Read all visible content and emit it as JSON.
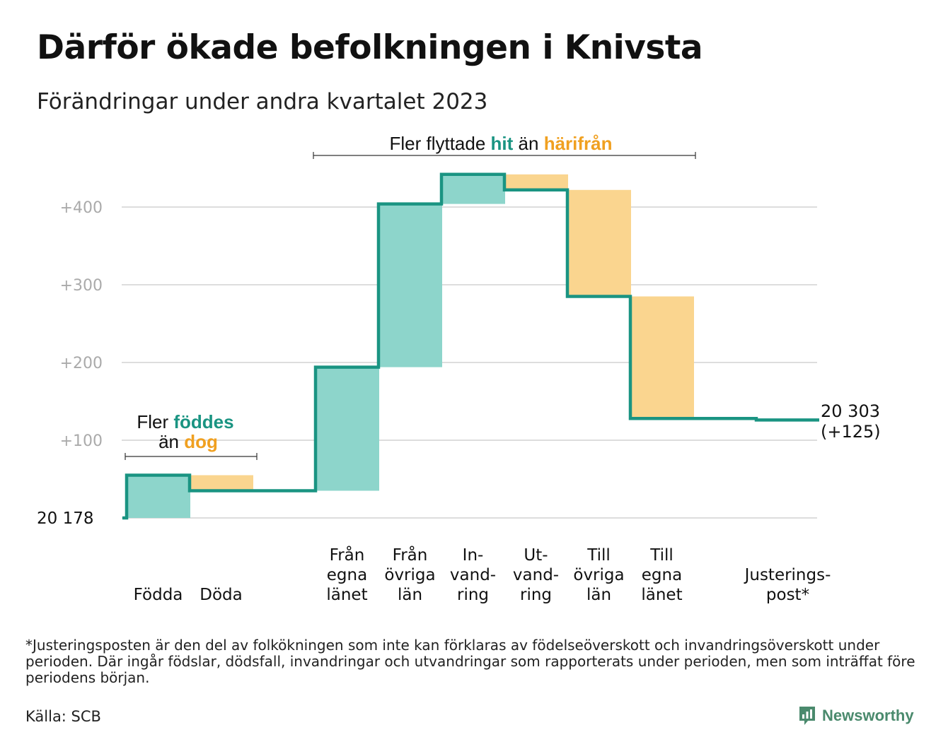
{
  "title": "Därför ökade befolkningen i Knivsta",
  "subtitle": "Förändringar under andra kvartalet 2023",
  "footnote": "*Justeringsposten är den del av folkökningen som inte kan förklaras av födelseöverskott och invandringsöverskott under perioden. Där ingår födslar, dödsfall, invandringar och utvandringar som rapporterats under perioden, men som inträffat före periodens början.",
  "source": "Källa: SCB",
  "brand": "Newsworthy",
  "colors": {
    "teal": "#1a9482",
    "teal_fill": "#8dd5cb",
    "orange_fill": "#fad58f",
    "orange_text": "#f0a020",
    "grid": "#dddddd",
    "tick": "#aaaaaa"
  },
  "annotations": {
    "birth_death": {
      "line1_pre": "Fler ",
      "line1_hl": "föddes",
      "line2_pre": "än ",
      "line2_hl": "dog"
    },
    "migration": {
      "pre": "Fler flyttade ",
      "hl1": "hit",
      "mid": " än ",
      "hl2": "härifrån"
    }
  },
  "chart_data": {
    "type": "waterfall",
    "base_label": "20  178",
    "end_label": [
      "20 303",
      "(+125)"
    ],
    "y_ticks": [
      {
        "value": 100,
        "label": "+100"
      },
      {
        "value": 200,
        "label": "+200"
      },
      {
        "value": 300,
        "label": "+300"
      },
      {
        "value": 400,
        "label": "+400"
      }
    ],
    "ylim": [
      0,
      450
    ],
    "steps": [
      {
        "label": [
          "",
          "",
          "Födda"
        ],
        "change": 55,
        "kind": "in"
      },
      {
        "label": [
          "",
          "",
          "Döda"
        ],
        "change": -20,
        "kind": "out"
      },
      {
        "label": [
          "",
          "",
          ""
        ],
        "change": 0,
        "kind": "gap"
      },
      {
        "label": [
          "Från",
          "egna",
          "länet"
        ],
        "change": 159,
        "kind": "in"
      },
      {
        "label": [
          "Från",
          "övriga",
          "län"
        ],
        "change": 210,
        "kind": "in"
      },
      {
        "label": [
          "In-",
          "vand-",
          "ring"
        ],
        "change": 38,
        "kind": "in"
      },
      {
        "label": [
          "Ut-",
          "vand-",
          "ring"
        ],
        "change": -20,
        "kind": "out"
      },
      {
        "label": [
          "Till",
          "övriga",
          "län"
        ],
        "change": -137,
        "kind": "out"
      },
      {
        "label": [
          "Till",
          "egna",
          "länet"
        ],
        "change": -157,
        "kind": "out"
      },
      {
        "label": [
          "",
          "",
          ""
        ],
        "change": 0,
        "kind": "gap"
      },
      {
        "label": [
          "",
          "Justerings-",
          "post*"
        ],
        "change": -2,
        "kind": "adjust"
      }
    ]
  }
}
